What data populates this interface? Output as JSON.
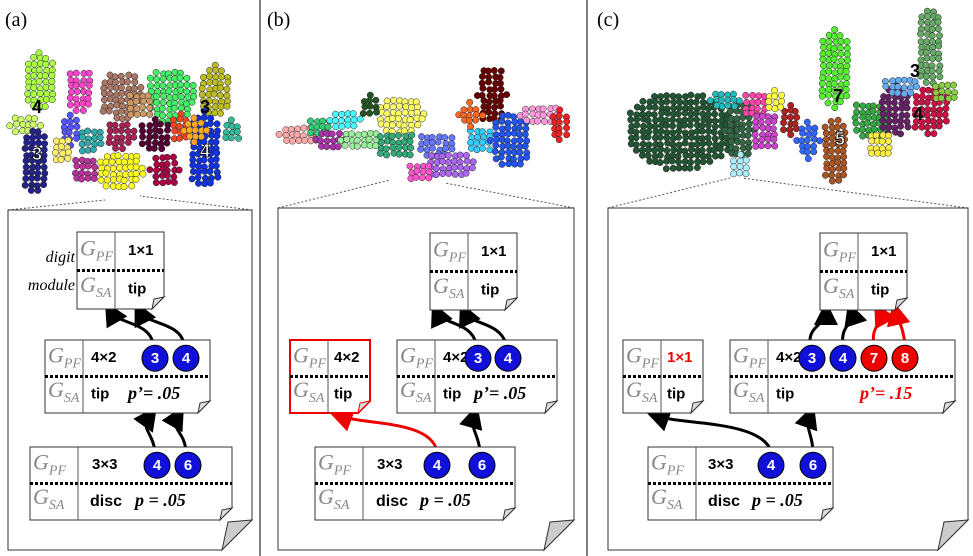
{
  "panels": [
    {
      "label": "(a)",
      "side_label": [
        "digit",
        "module"
      ],
      "cloud_labels": [
        {
          "text": "4",
          "color": "black"
        },
        {
          "text": "3",
          "color": "black"
        },
        {
          "text": "3",
          "color": "white"
        },
        {
          "text": "4",
          "color": "white"
        }
      ],
      "cards": [
        {
          "pf": {
            "base": "G",
            "sub": "PF"
          },
          "size": "1×1",
          "sa": {
            "base": "G",
            "sub": "SA"
          },
          "kind": "tip"
        },
        {
          "pf": {
            "base": "G",
            "sub": "PF"
          },
          "size": "4×2",
          "sa": {
            "base": "G",
            "sub": "SA"
          },
          "kind": "tip",
          "p": "p’= .05",
          "circles": [
            {
              "label": "3",
              "color": "blue"
            },
            {
              "label": "4",
              "color": "blue"
            }
          ]
        },
        {
          "pf": {
            "base": "G",
            "sub": "PF"
          },
          "size": "3×3",
          "sa": {
            "base": "G",
            "sub": "SA"
          },
          "kind": "disc",
          "p": "p = .05",
          "circles": [
            {
              "label": "4",
              "color": "blue"
            },
            {
              "label": "6",
              "color": "blue"
            }
          ]
        }
      ]
    },
    {
      "label": "(b)",
      "cards": [
        {
          "pf": {
            "base": "G",
            "sub": "PF"
          },
          "size": "1×1",
          "sa": {
            "base": "G",
            "sub": "SA"
          },
          "kind": "tip"
        },
        {
          "pf": {
            "base": "G",
            "sub": "PF"
          },
          "size": "4×2",
          "sa": {
            "base": "G",
            "sub": "SA"
          },
          "kind": "tip",
          "border_color": "red"
        },
        {
          "pf": {
            "base": "G",
            "sub": "PF"
          },
          "size": "4×2",
          "sa": {
            "base": "G",
            "sub": "SA"
          },
          "kind": "tip",
          "p": "p’= .05",
          "circles": [
            {
              "label": "3",
              "color": "blue"
            },
            {
              "label": "4",
              "color": "blue"
            }
          ]
        },
        {
          "pf": {
            "base": "G",
            "sub": "PF"
          },
          "size": "3×3",
          "sa": {
            "base": "G",
            "sub": "SA"
          },
          "kind": "disc",
          "p": "p = .05",
          "circles": [
            {
              "label": "4",
              "color": "blue"
            },
            {
              "label": "6",
              "color": "blue"
            }
          ]
        }
      ]
    },
    {
      "label": "(c)",
      "cloud_labels": [
        {
          "text": "3",
          "color": "black"
        },
        {
          "text": "7",
          "color": "black"
        },
        {
          "text": "4",
          "color": "black"
        },
        {
          "text": "5",
          "color": "white"
        }
      ],
      "cards": [
        {
          "pf": {
            "base": "G",
            "sub": "PF"
          },
          "size": "1×1",
          "sa": {
            "base": "G",
            "sub": "SA"
          },
          "kind": "tip"
        },
        {
          "pf": {
            "base": "G",
            "sub": "PF"
          },
          "size": "1×1",
          "size_color": "red",
          "sa": {
            "base": "G",
            "sub": "SA"
          },
          "kind": "tip"
        },
        {
          "pf": {
            "base": "G",
            "sub": "PF"
          },
          "size": "4×2",
          "sa": {
            "base": "G",
            "sub": "SA"
          },
          "kind": "tip",
          "p": "p’= .15",
          "p_color": "red",
          "circles": [
            {
              "label": "3",
              "color": "blue"
            },
            {
              "label": "4",
              "color": "blue"
            },
            {
              "label": "7",
              "color": "red"
            },
            {
              "label": "8",
              "color": "red"
            }
          ]
        },
        {
          "pf": {
            "base": "G",
            "sub": "PF"
          },
          "size": "3×3",
          "sa": {
            "base": "G",
            "sub": "SA"
          },
          "kind": "disc",
          "p": "p = .05",
          "circles": [
            {
              "label": "4",
              "color": "blue"
            },
            {
              "label": "6",
              "color": "blue"
            }
          ]
        }
      ]
    }
  ]
}
